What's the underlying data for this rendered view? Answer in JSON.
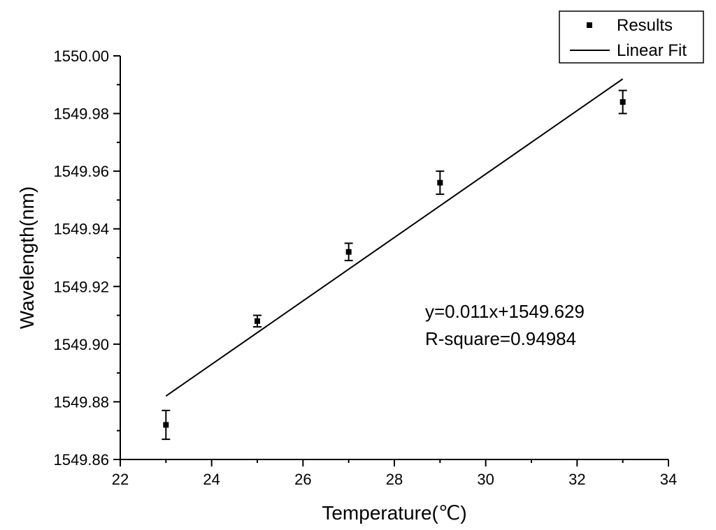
{
  "chart_data": {
    "type": "scatter",
    "title": "",
    "xlabel": "Temperature(℃)",
    "ylabel": "Wavelength(nm)",
    "xlim": [
      22,
      34
    ],
    "ylim": [
      1549.86,
      1550.0
    ],
    "x_ticks": [
      "22",
      "24",
      "26",
      "28",
      "30",
      "32",
      "34"
    ],
    "y_ticks": [
      "1549.86",
      "1549.88",
      "1549.90",
      "1549.92",
      "1549.94",
      "1549.96",
      "1549.98",
      "1550.00"
    ],
    "series": [
      {
        "name": "Results",
        "kind": "points_with_error",
        "x": [
          23,
          25,
          27,
          29,
          33
        ],
        "y": [
          1549.872,
          1549.908,
          1549.932,
          1549.956,
          1549.984
        ],
        "error": [
          0.005,
          0.002,
          0.003,
          0.004,
          0.004
        ]
      },
      {
        "name": "Linear Fit",
        "kind": "line",
        "x": [
          23,
          33
        ],
        "y": [
          1549.882,
          1549.992
        ]
      }
    ],
    "legend": {
      "placement": "top-right",
      "entries": [
        "Results",
        "Linear Fit"
      ]
    },
    "annotations": [
      "y=0.011x+1549.629",
      "R-square=0.94984"
    ],
    "grid": false
  }
}
